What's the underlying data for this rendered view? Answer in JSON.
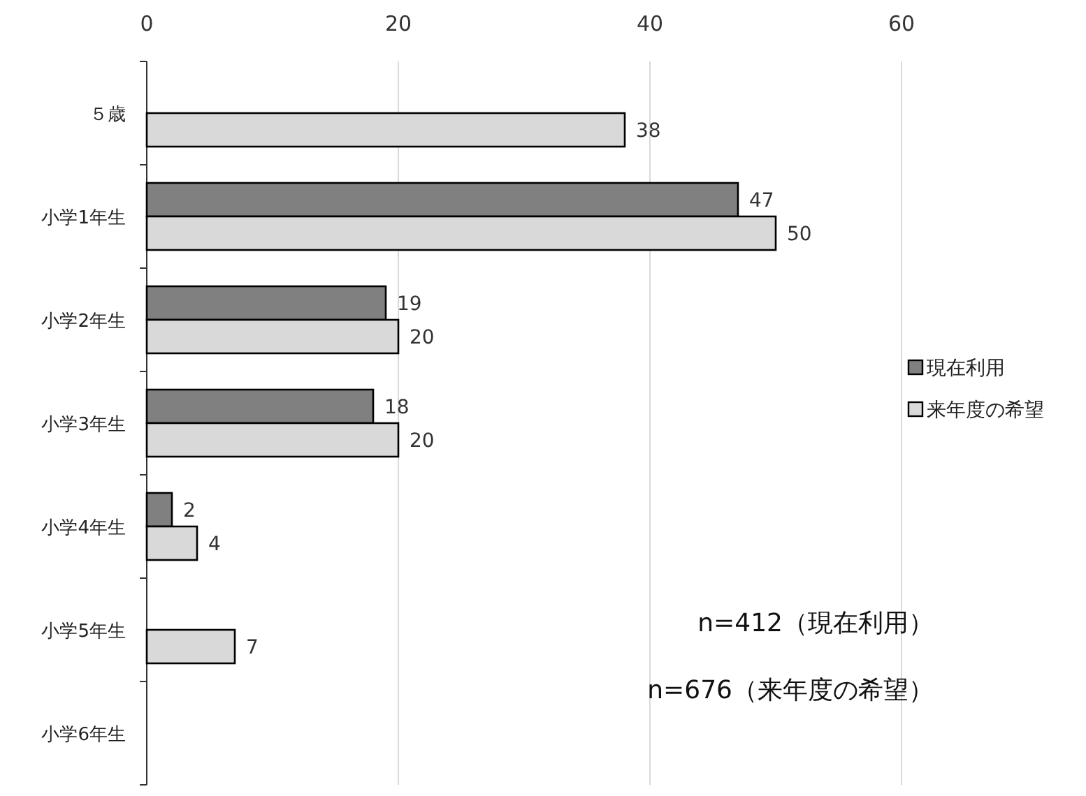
{
  "chart_data": {
    "type": "bar",
    "orientation": "horizontal",
    "categories": [
      "５歳",
      "小学1年生",
      "小学2年生",
      "小学3年生",
      "小学4年生",
      "小学5年生",
      "小学6年生"
    ],
    "series": [
      {
        "name": "現在利用",
        "color": "#808080",
        "values": [
          null,
          47,
          19,
          18,
          2,
          null,
          null
        ]
      },
      {
        "name": "来年度の希望",
        "color": "#d9d9d9",
        "values": [
          38,
          50,
          20,
          20,
          4,
          7,
          null
        ]
      }
    ],
    "xlim": [
      0,
      60
    ],
    "xticks": [
      0,
      20,
      40,
      60
    ],
    "grid": "x",
    "legend": "right",
    "data_labels": true,
    "annotations": [
      "n=412（現在利用）",
      "n=676（来年度の希望）"
    ]
  }
}
